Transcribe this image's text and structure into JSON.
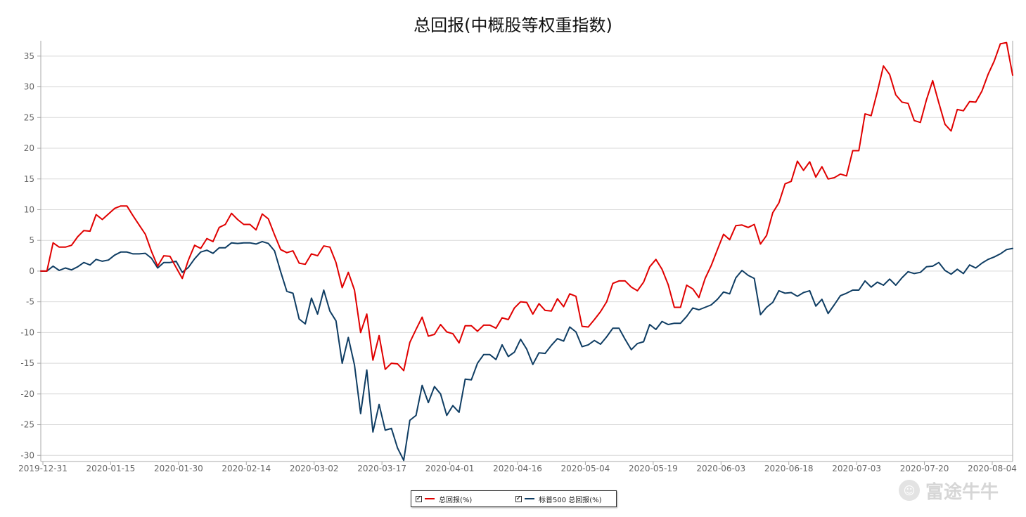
{
  "chart_data": {
    "type": "line",
    "title": "总回报(中概股等权重指数)",
    "xlabel": "",
    "ylabel": "",
    "ylim": [
      -31,
      37.5
    ],
    "yticks": [
      35,
      30,
      25,
      20,
      15,
      10,
      5,
      0,
      -5,
      -10,
      -15,
      -20,
      -25,
      -30
    ],
    "x_tick_labels": [
      "2019-12-31",
      "2020-01-15",
      "2020-01-30",
      "2020-02-14",
      "2020-03-02",
      "2020-03-17",
      "2020-04-01",
      "2020-04-16",
      "2020-05-04",
      "2020-05-19",
      "2020-06-03",
      "2020-06-18",
      "2020-07-03",
      "2020-07-20",
      "2020-08-04"
    ],
    "grid": "horizontal",
    "legend_position": "bottom-center",
    "series": [
      {
        "name": "总回报(%)",
        "color": "#e00000",
        "values": [
          0,
          0,
          4.6,
          3.9,
          3.9,
          4.2,
          5.6,
          6.6,
          6.5,
          9.2,
          8.4,
          9.3,
          10.2,
          10.6,
          10.6,
          9.0,
          7.5,
          6.0,
          3.2,
          0.8,
          2.5,
          2.4,
          0.6,
          -1.2,
          1.8,
          4.2,
          3.7,
          5.3,
          4.8,
          7.1,
          7.6,
          9.4,
          8.4,
          7.6,
          7.6,
          6.7,
          9.3,
          8.5,
          5.9,
          3.5,
          3.0,
          3.3,
          1.3,
          1.1,
          2.8,
          2.5,
          4.1,
          3.9,
          1.4,
          -2.7,
          -0.2,
          -3.1,
          -10.0,
          -7.0,
          -14.5,
          -10.5,
          -16.0,
          -15.0,
          -15.1,
          -16.2,
          -11.6,
          -9.5,
          -7.5,
          -10.6,
          -10.3,
          -8.7,
          -9.9,
          -10.2,
          -11.7,
          -8.9,
          -8.9,
          -9.8,
          -8.8,
          -8.8,
          -9.3,
          -7.6,
          -7.9,
          -6.0,
          -5.0,
          -5.1,
          -7.0,
          -5.3,
          -6.4,
          -6.5,
          -4.5,
          -5.8,
          -3.7,
          -4.1,
          -9.0,
          -9.1,
          -7.9,
          -6.6,
          -5.0,
          -2.0,
          -1.6,
          -1.6,
          -2.6,
          -3.2,
          -1.8,
          0.7,
          1.9,
          0.3,
          -2.2,
          -5.9,
          -5.9,
          -2.3,
          -2.9,
          -4.3,
          -1.2,
          0.9,
          3.5,
          6.0,
          5.1,
          7.4,
          7.5,
          7.1,
          7.6,
          4.4,
          5.8,
          9.5,
          11.1,
          14.2,
          14.6,
          17.9,
          16.4,
          17.8,
          15.3,
          17.0,
          15.0,
          15.2,
          15.8,
          15.5,
          19.6,
          19.6,
          25.6,
          25.3,
          29.2,
          33.4,
          32.0,
          28.7,
          27.5,
          27.3,
          24.5,
          24.2,
          27.9,
          31.0,
          27.4,
          23.9,
          22.8,
          26.3,
          26.1,
          27.6,
          27.5,
          29.3,
          32.0,
          34.2,
          37.0,
          37.2,
          31.9
        ]
      },
      {
        "name": "标普500 总回报(%)",
        "color": "#0f3d63",
        "values": [
          0,
          0,
          0.8,
          0.1,
          0.5,
          0.2,
          0.7,
          1.4,
          1.0,
          1.9,
          1.6,
          1.8,
          2.6,
          3.1,
          3.1,
          2.8,
          2.8,
          2.9,
          2.1,
          0.5,
          1.4,
          1.4,
          1.6,
          -0.2,
          0.6,
          2.0,
          3.1,
          3.4,
          2.9,
          3.8,
          3.8,
          4.6,
          4.5,
          4.6,
          4.6,
          4.4,
          4.8,
          4.5,
          3.3,
          -0.1,
          -3.3,
          -3.6,
          -7.8,
          -8.6,
          -4.4,
          -7.0,
          -3.1,
          -6.5,
          -8.1,
          -15.0,
          -10.8,
          -15.3,
          -23.2,
          -16.1,
          -26.2,
          -21.7,
          -25.9,
          -25.6,
          -28.8,
          -30.8,
          -24.3,
          -23.5,
          -18.6,
          -21.4,
          -18.8,
          -20.0,
          -23.5,
          -21.9,
          -23.0,
          -17.6,
          -17.7,
          -15.0,
          -13.6,
          -13.6,
          -14.4,
          -12.0,
          -13.9,
          -13.2,
          -11.1,
          -12.7,
          -15.2,
          -13.3,
          -13.4,
          -12.1,
          -11.0,
          -11.4,
          -9.1,
          -9.9,
          -12.3,
          -12.0,
          -11.3,
          -11.9,
          -10.7,
          -9.3,
          -9.3,
          -11.1,
          -12.8,
          -11.8,
          -11.5,
          -8.7,
          -9.5,
          -8.2,
          -8.7,
          -8.5,
          -8.5,
          -7.4,
          -6.0,
          -6.3,
          -5.9,
          -5.5,
          -4.6,
          -3.4,
          -3.7,
          -1.1,
          0.1,
          -0.7,
          -1.2,
          -7.1,
          -5.9,
          -5.1,
          -3.2,
          -3.6,
          -3.5,
          -4.1,
          -3.5,
          -3.2,
          -5.7,
          -4.6,
          -6.9,
          -5.5,
          -4.0,
          -3.6,
          -3.1,
          -3.1,
          -1.6,
          -2.6,
          -1.8,
          -2.3,
          -1.3,
          -2.3,
          -1.1,
          -0.1,
          -0.4,
          -0.2,
          0.7,
          0.8,
          1.4,
          0.1,
          -0.5,
          0.3,
          -0.4,
          1.0,
          0.5,
          1.3,
          1.9,
          2.3,
          2.8,
          3.5,
          3.7
        ]
      }
    ]
  },
  "legend": {
    "items": [
      {
        "label": "总回报(%)",
        "color": "#e00000",
        "checked": "✓"
      },
      {
        "label": "标普500 总回报(%)",
        "color": "#0f3d63",
        "checked": "✓"
      }
    ]
  },
  "watermark": {
    "text": "富途牛牛"
  }
}
